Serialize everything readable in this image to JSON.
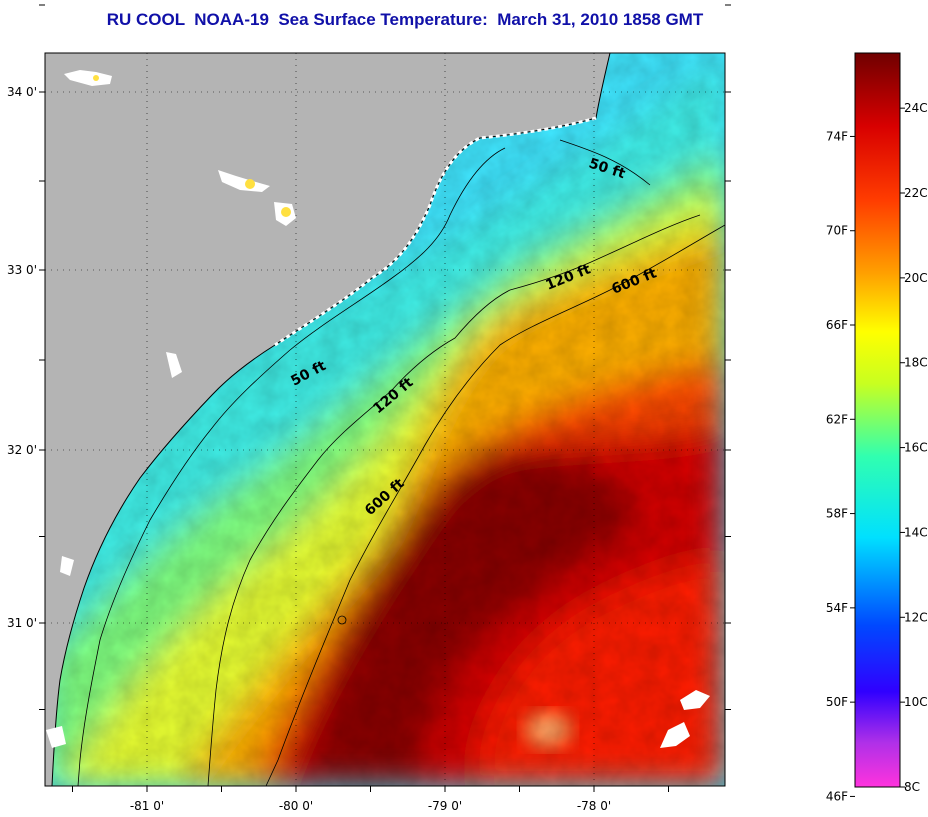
{
  "title": "RU COOL  NOAA-19  Sea Surface Temperature:  March 31, 2010 1858 GMT",
  "map": {
    "lat_ticks": [
      "34 0'",
      "33 0'",
      "32 0'",
      "31 0'"
    ],
    "lon_ticks": [
      "-81 0'",
      "-80 0'",
      "-79 0'",
      "-78 0'"
    ],
    "contour_labels": [
      {
        "text": "50 ft",
        "depth_ft": 50
      },
      {
        "text": "120 ft",
        "depth_ft": 120
      },
      {
        "text": "600 ft",
        "depth_ft": 600
      },
      {
        "text": "50 ft",
        "depth_ft": 50
      },
      {
        "text": "120 ft",
        "depth_ft": 120
      },
      {
        "text": "600 ft",
        "depth_ft": 600
      }
    ],
    "colors": {
      "land": "#b4b4b4",
      "cloud": "#ffffff",
      "coast": "#000000"
    }
  },
  "colorbar": {
    "fahrenheit_labels": [
      "74F",
      "70F",
      "66F",
      "62F",
      "58F",
      "54F",
      "50F",
      "46F"
    ],
    "celsius_labels": [
      "24C",
      "22C",
      "20C",
      "18C",
      "16C",
      "14C",
      "12C",
      "10C",
      "8C"
    ],
    "stops": [
      "#ff33dd",
      "#7a20e0",
      "#0000ff",
      "#1e70ff",
      "#00e8ff",
      "#30ffb0",
      "#ffff00",
      "#ffa000",
      "#ff3000",
      "#d00000",
      "#7a0000"
    ]
  }
}
